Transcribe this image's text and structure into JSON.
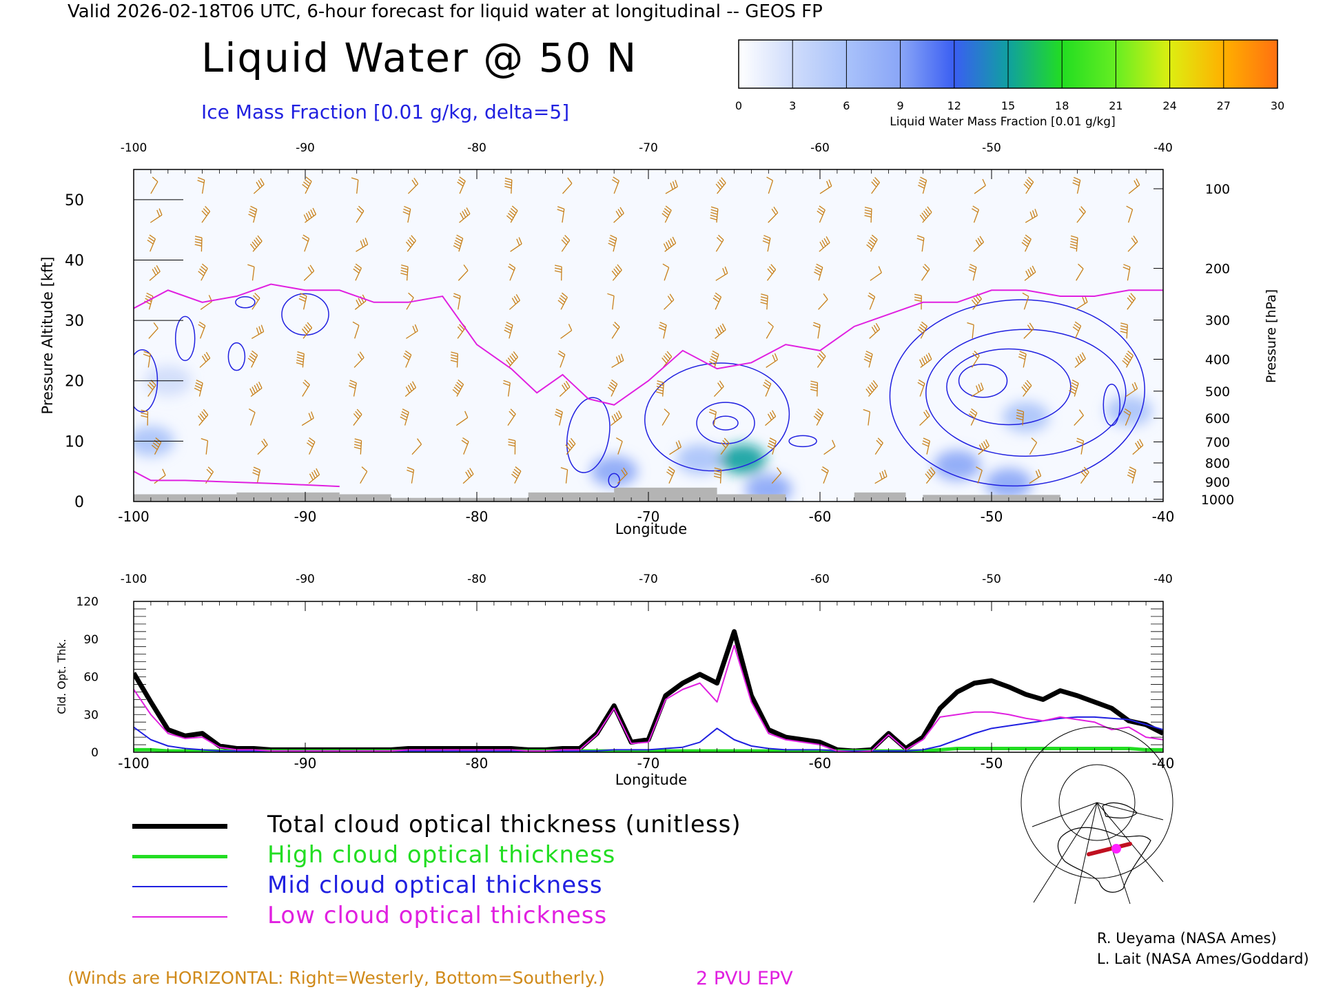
{
  "header": "Valid 2026-02-18T06 UTC, 6-hour forecast for liquid water at longitudinal -- GEOS FP",
  "title": "Liquid Water @ 50 N",
  "subtitle": "Ice Mass Fraction [0.01 g/kg, delta=5]",
  "colorbar": {
    "label": "Liquid Water Mass Fraction [0.01 g/kg]",
    "ticks": [
      "0",
      "3",
      "6",
      "9",
      "12",
      "15",
      "18",
      "21",
      "24",
      "27",
      "30"
    ],
    "colors": [
      "#ffffff",
      "#cfdcfb",
      "#a9c2fa",
      "#8aa6f7",
      "#3a5ef2",
      "#10a0a0",
      "#22dd22",
      "#66ee22",
      "#ddee11",
      "#ffb000",
      "#ff7010"
    ]
  },
  "footer": {
    "winds_note": "(Winds are HORIZONTAL: Right=Westerly, Bottom=Southerly.)",
    "pvu_label": "2 PVU EPV"
  },
  "credits": [
    "R. Ueyama (NASA Ames)",
    "L. Lait (NASA Ames/Goddard)"
  ],
  "legend": [
    {
      "label": "Total cloud optical thickness (unitless)",
      "color": "#000000",
      "width": 7
    },
    {
      "label": "High cloud optical thickness",
      "color": "#22dd22",
      "width": 5
    },
    {
      "label": "Mid cloud optical thickness",
      "color": "#2020e0",
      "width": 2
    },
    {
      "label": "Low cloud optical thickness",
      "color": "#e020e0",
      "width": 2
    }
  ],
  "colors": {
    "ice_contour": "#2020e0",
    "epv_line": "#e020e0",
    "wind_barb": "#c8801a",
    "terrain": "#b4b4b4",
    "text_orange": "#d08a1a"
  },
  "chart_data": [
    {
      "type": "heatmap",
      "title": "Liquid Water @ 50 N",
      "xlabel": "Longitude",
      "ylabel_left": "Pressure Altitude [kft]",
      "ylabel_right": "Pressure [hPa]",
      "xlim": [
        -100,
        -40
      ],
      "ylim": [
        0,
        55
      ],
      "x_ticks": [
        "-100",
        "-90",
        "-80",
        "-70",
        "-60",
        "-50",
        "-40"
      ],
      "x_ticks_top": [
        "-100",
        "-90",
        "-80",
        "-70",
        "-60",
        "-50",
        "-40"
      ],
      "y_ticks": [
        "0",
        "10",
        "20",
        "30",
        "40",
        "50"
      ],
      "pressure_ticks": [
        "100",
        "200",
        "300",
        "400",
        "500",
        "600",
        "700",
        "800",
        "900",
        "1000"
      ],
      "liquid_water_blobs": [
        {
          "lon": -99,
          "alt": 10,
          "value": 6
        },
        {
          "lon": -98,
          "alt": 20,
          "value": 4
        },
        {
          "lon": -72,
          "alt": 5,
          "value": 9
        },
        {
          "lon": -67,
          "alt": 7,
          "value": 7
        },
        {
          "lon": -64.5,
          "alt": 7,
          "value": 16
        },
        {
          "lon": -63,
          "alt": 2,
          "value": 8
        },
        {
          "lon": -52,
          "alt": 6,
          "value": 9
        },
        {
          "lon": -49,
          "alt": 3,
          "value": 8
        },
        {
          "lon": -48,
          "alt": 14,
          "value": 6
        },
        {
          "lon": -42,
          "alt": 15,
          "value": 7
        }
      ],
      "epv_2pvu_lon": [
        -100,
        -98,
        -96,
        -94,
        -92,
        -90,
        -88,
        -86,
        -84,
        -82,
        -80,
        -78,
        -76.5,
        -75,
        -73.5,
        -72,
        -70,
        -68,
        -66,
        -64,
        -62,
        -60,
        -58,
        -56,
        -54,
        -52,
        -50,
        -48,
        -46,
        -44,
        -42,
        -40
      ],
      "epv_2pvu_alt": [
        32,
        35,
        33,
        34,
        36,
        35,
        35,
        33,
        33,
        34,
        26,
        22,
        18,
        21,
        17,
        16,
        20,
        25,
        22,
        23,
        26,
        25,
        29,
        31,
        33,
        33,
        35,
        35,
        34,
        34,
        35,
        35
      ]
    },
    {
      "type": "line",
      "xlabel": "Longitude",
      "ylabel": "Cld. Opt. Thk.",
      "xlim": [
        -100,
        -40
      ],
      "ylim": [
        0,
        120
      ],
      "x_ticks": [
        "-100",
        "-90",
        "-80",
        "-70",
        "-60",
        "-50",
        "-40"
      ],
      "x_ticks_top": [
        "-100",
        "-90",
        "-80",
        "-70",
        "-60",
        "-50",
        "-40"
      ],
      "y_ticks": [
        "0",
        "30",
        "60",
        "90",
        "120"
      ],
      "x": [
        -100,
        -99,
        -98,
        -97,
        -96,
        -95,
        -94,
        -93,
        -92,
        -91,
        -90,
        -89,
        -88,
        -87,
        -86,
        -85,
        -84,
        -83,
        -82,
        -81,
        -80,
        -79,
        -78,
        -77,
        -76,
        -75,
        -74,
        -73,
        -72,
        -71,
        -70,
        -69,
        -68,
        -67,
        -66,
        -65,
        -64,
        -63,
        -62,
        -61,
        -60,
        -59,
        -58,
        -57,
        -56,
        -55,
        -54,
        -53,
        -52,
        -51,
        -50,
        -49,
        -48,
        -47,
        -46,
        -45,
        -44,
        -43,
        -42,
        -41,
        -40
      ],
      "series": [
        {
          "name": "Total cloud optical thickness (unitless)",
          "color": "#000000",
          "values": [
            63,
            40,
            18,
            13,
            15,
            5,
            3,
            3,
            2,
            2,
            2,
            2,
            2,
            2,
            2,
            2,
            3,
            3,
            3,
            3,
            3,
            3,
            3,
            2,
            2,
            3,
            3,
            15,
            37,
            8,
            10,
            45,
            55,
            62,
            55,
            96,
            45,
            18,
            12,
            10,
            8,
            2,
            1,
            2,
            15,
            3,
            12,
            35,
            48,
            55,
            57,
            52,
            46,
            42,
            49,
            45,
            40,
            35,
            25,
            22,
            15
          ]
        },
        {
          "name": "High cloud optical thickness",
          "color": "#22dd22",
          "values": [
            2,
            2,
            1,
            1,
            1,
            1,
            1,
            1,
            1,
            1,
            1,
            1,
            1,
            1,
            1,
            1,
            1,
            1,
            1,
            1,
            1,
            1,
            1,
            1,
            1,
            1,
            1,
            1,
            1,
            1,
            1,
            1,
            1,
            1,
            1,
            1,
            1,
            1,
            1,
            1,
            1,
            1,
            1,
            1,
            1,
            1,
            1,
            2,
            3,
            3,
            3,
            3,
            3,
            3,
            3,
            3,
            3,
            3,
            3,
            2,
            2
          ]
        },
        {
          "name": "Mid cloud optical thickness",
          "color": "#2020e0",
          "values": [
            20,
            10,
            5,
            3,
            2,
            1,
            1,
            1,
            1,
            1,
            1,
            1,
            1,
            1,
            1,
            1,
            1,
            1,
            1,
            1,
            1,
            1,
            1,
            1,
            1,
            1,
            1,
            1,
            2,
            2,
            2,
            3,
            4,
            8,
            19,
            10,
            5,
            3,
            2,
            2,
            2,
            1,
            1,
            1,
            1,
            1,
            2,
            5,
            10,
            15,
            19,
            21,
            23,
            25,
            27,
            28,
            28,
            27,
            26,
            22,
            18
          ]
        },
        {
          "name": "Low cloud optical thickness",
          "color": "#e020e0",
          "values": [
            50,
            30,
            15,
            11,
            12,
            4,
            2,
            2,
            1,
            1,
            1,
            1,
            1,
            1,
            1,
            1,
            2,
            2,
            2,
            2,
            2,
            2,
            2,
            1,
            1,
            2,
            2,
            14,
            35,
            7,
            8,
            42,
            50,
            55,
            40,
            85,
            40,
            15,
            10,
            8,
            6,
            1,
            0,
            1,
            14,
            2,
            10,
            28,
            30,
            32,
            32,
            30,
            27,
            25,
            28,
            26,
            24,
            18,
            20,
            12,
            10
          ]
        }
      ]
    }
  ]
}
